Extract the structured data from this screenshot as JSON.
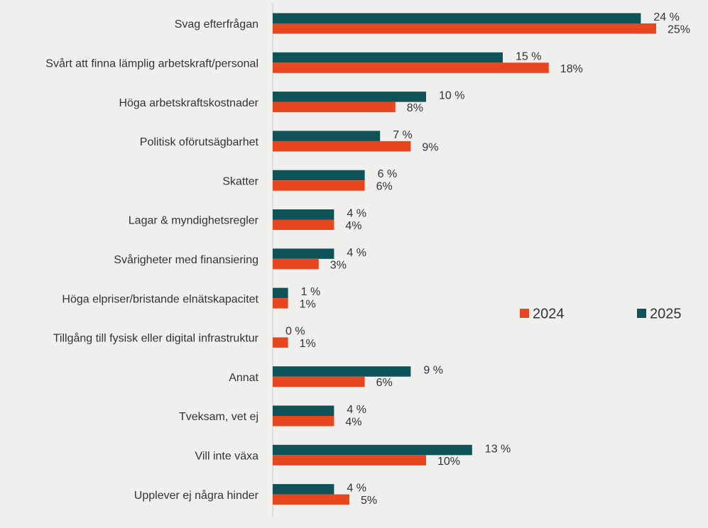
{
  "chart_data": {
    "type": "bar",
    "orientation": "horizontal",
    "categories": [
      "Svag efterfrågan",
      "Svårt att finna lämplig arbetskraft/personal",
      "Höga arbetskraftskostnader",
      "Politisk oförutsägbarhet",
      "Skatter",
      "Lagar & myndighetsregler",
      "Svårigheter med finansiering",
      "Höga elpriser/bristande elnätskapacitet",
      "Tillgång till fysisk eller digital infrastruktur",
      "Annat",
      "Tveksam, vet ej",
      "Vill inte växa",
      "Upplever ej några hinder"
    ],
    "series": [
      {
        "name": "2024",
        "color": "#e8461e",
        "values": [
          25,
          18,
          8,
          9,
          6,
          4,
          3,
          1,
          1,
          6,
          4,
          10,
          5
        ],
        "value_labels": [
          "25%",
          "18%",
          "8%",
          "9%",
          "6%",
          "4%",
          "3%",
          "1%",
          "1%",
          "6%",
          "4%",
          "10%",
          "5%"
        ]
      },
      {
        "name": "2025",
        "color": "#0f5257",
        "values": [
          24,
          15,
          10,
          7,
          6,
          4,
          4,
          1,
          0,
          9,
          4,
          13,
          4
        ],
        "value_labels": [
          "24 %",
          "15 %",
          "10 %",
          "7 %",
          "6 %",
          "4 %",
          "4 %",
          "1 %",
          "0 %",
          "9 %",
          "4 %",
          "13 %",
          "4 %"
        ]
      }
    ],
    "legend": "right"
  }
}
